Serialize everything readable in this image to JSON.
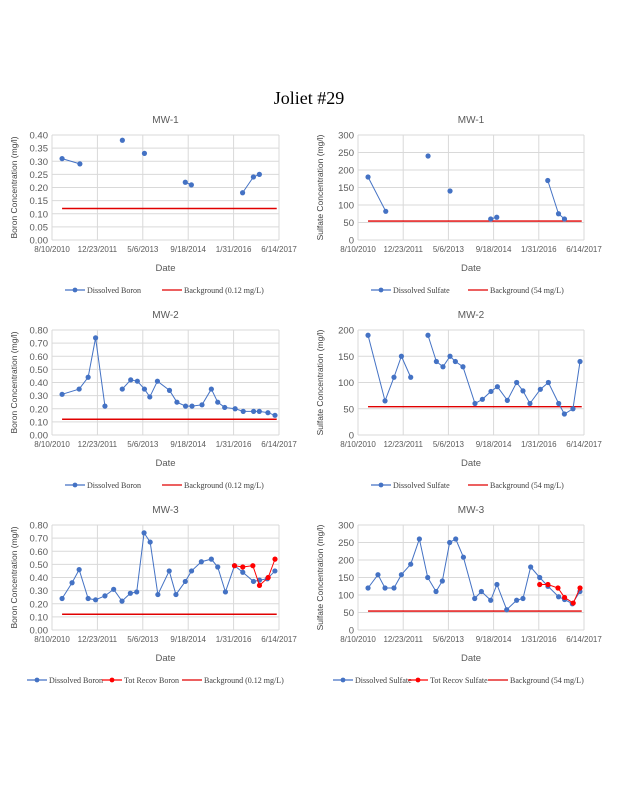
{
  "page": {
    "title": "Joliet #29"
  },
  "colors": {
    "dissolved": "#4472C4",
    "total": "#FF0000",
    "background": "#E00000",
    "grid": "#D9D9D9",
    "text": "#595959"
  },
  "chart_data": [
    {
      "id": "mw1-boron",
      "type": "line",
      "title": "MW-1",
      "xlabel": "Date",
      "ylabel": "Boron  Concentration  (mg/l)",
      "x_ticks": [
        "8/10/2010",
        "12/23/2011",
        "5/6/2013",
        "9/18/2014",
        "1/31/2016",
        "6/14/2017"
      ],
      "xlim": [
        "2010-08-10",
        "2017-06-14"
      ],
      "y_ticks": [
        "0.00",
        "0.05",
        "0.10",
        "0.15",
        "0.20",
        "0.25",
        "0.30",
        "0.35",
        "0.40"
      ],
      "ylim": [
        0,
        0.4
      ],
      "grid": true,
      "legend_position": "bottom",
      "series": [
        {
          "name": "Dissolved Boron",
          "color": "#4472C4",
          "marker": "circle",
          "segments": [
            [
              [
                "2010-11-29",
                0.31
              ],
              [
                "2011-06-13",
                0.29
              ]
            ],
            [
              [
                "2012-09-23",
                0.38
              ]
            ],
            [
              [
                "2013-05-24",
                0.33
              ]
            ],
            [
              [
                "2014-08-17",
                0.22
              ],
              [
                "2014-10-23",
                0.21
              ]
            ],
            [
              [
                "2016-05-09",
                0.18
              ],
              [
                "2016-09-05",
                0.24
              ],
              [
                "2016-11-10",
                0.25
              ]
            ]
          ]
        }
      ],
      "background": {
        "name": "Background  (0.12 mg/L)",
        "value": 0.12,
        "from": "2010-11-29",
        "to": "2017-05-20",
        "color": "#E00000"
      }
    },
    {
      "id": "mw1-sulfate",
      "type": "line",
      "title": "MW-1",
      "xlabel": "Date",
      "ylabel": "Sulfate   Concentration (mg/l)",
      "x_ticks": [
        "8/10/2010",
        "12/23/2011",
        "5/6/2013",
        "9/18/2014",
        "1/31/2016",
        "6/14/2017"
      ],
      "xlim": [
        "2010-08-10",
        "2017-06-14"
      ],
      "y_ticks": [
        "0",
        "50",
        "100",
        "150",
        "200",
        "250",
        "300"
      ],
      "ylim": [
        0,
        300
      ],
      "grid": true,
      "legend_position": "bottom",
      "series": [
        {
          "name": "Dissolved Sulfate",
          "color": "#4472C4",
          "marker": "circle",
          "segments": [
            [
              [
                "2010-11-29",
                180
              ],
              [
                "2011-06-13",
                82
              ]
            ],
            [
              [
                "2012-09-23",
                240
              ]
            ],
            [
              [
                "2013-05-24",
                140
              ]
            ],
            [
              [
                "2014-08-17",
                60
              ],
              [
                "2014-10-23",
                65
              ]
            ],
            [
              [
                "2016-05-09",
                170
              ],
              [
                "2016-09-05",
                75
              ],
              [
                "2016-11-10",
                60
              ]
            ]
          ]
        }
      ],
      "background": {
        "name": "Background  (54 mg/L)",
        "value": 54,
        "from": "2010-11-29",
        "to": "2017-05-20",
        "color": "#E00000"
      }
    },
    {
      "id": "mw2-boron",
      "type": "line",
      "title": "MW-2",
      "xlabel": "Date",
      "ylabel": "Boron  Concentration (mg/l)",
      "x_ticks": [
        "8/10/2010",
        "12/23/2011",
        "5/6/2013",
        "9/18/2014",
        "1/31/2016",
        "6/14/2017"
      ],
      "xlim": [
        "2010-08-10",
        "2017-06-14"
      ],
      "y_ticks": [
        "0.00",
        "0.10",
        "0.20",
        "0.30",
        "0.40",
        "0.50",
        "0.60",
        "0.70",
        "0.80"
      ],
      "ylim": [
        0,
        0.8
      ],
      "grid": true,
      "legend_position": "bottom",
      "series": [
        {
          "name": "Dissolved Boron",
          "color": "#4472C4",
          "marker": "circle",
          "segments": [
            [
              [
                "2010-11-29",
                0.31
              ],
              [
                "2011-06-05",
                0.35
              ],
              [
                "2011-09-12",
                0.44
              ],
              [
                "2011-12-03",
                0.74
              ],
              [
                "2012-03-15",
                0.22
              ]
            ],
            [
              [
                "2012-09-22",
                0.35
              ],
              [
                "2012-12-24",
                0.42
              ],
              [
                "2013-03-07",
                0.41
              ],
              [
                "2013-05-24",
                0.35
              ],
              [
                "2013-07-22",
                0.29
              ],
              [
                "2013-10-14",
                0.41
              ],
              [
                "2014-02-24",
                0.34
              ],
              [
                "2014-05-17",
                0.25
              ],
              [
                "2014-08-20",
                0.22
              ],
              [
                "2014-10-30",
                0.22
              ],
              [
                "2015-02-17",
                0.23
              ],
              [
                "2015-05-31",
                0.35
              ],
              [
                "2015-08-09",
                0.25
              ],
              [
                "2015-10-25",
                0.21
              ],
              [
                "2016-02-17",
                0.2
              ],
              [
                "2016-05-16",
                0.18
              ],
              [
                "2016-09-07",
                0.18
              ],
              [
                "2016-11-09",
                0.18
              ],
              [
                "2017-02-12",
                0.17
              ],
              [
                "2017-05-01",
                0.15
              ]
            ]
          ]
        }
      ],
      "background": {
        "name": "Background  (0.12 mg/L)",
        "value": 0.12,
        "from": "2010-11-29",
        "to": "2017-05-20",
        "color": "#E00000"
      }
    },
    {
      "id": "mw2-sulfate",
      "type": "line",
      "title": "MW-2",
      "xlabel": "Date",
      "ylabel": "Sulfate   Concentration    (mg/l)",
      "x_ticks": [
        "8/10/2010",
        "12/23/2011",
        "5/6/2013",
        "9/18/2014",
        "1/31/2016",
        "6/14/2017"
      ],
      "xlim": [
        "2010-08-10",
        "2017-06-14"
      ],
      "y_ticks": [
        "0",
        "50",
        "100",
        "150",
        "200"
      ],
      "ylim": [
        0,
        200
      ],
      "grid": true,
      "legend_position": "bottom",
      "series": [
        {
          "name": "Dissolved Sulfate",
          "color": "#4472C4",
          "marker": "circle",
          "segments": [
            [
              [
                "2010-11-29",
                190
              ],
              [
                "2011-06-05",
                65
              ],
              [
                "2011-09-12",
                110
              ],
              [
                "2011-12-03",
                150
              ],
              [
                "2012-03-15",
                110
              ]
            ],
            [
              [
                "2012-09-22",
                190
              ],
              [
                "2012-12-24",
                140
              ],
              [
                "2013-03-07",
                130
              ],
              [
                "2013-05-24",
                150
              ],
              [
                "2013-07-22",
                140
              ],
              [
                "2013-10-14",
                130
              ],
              [
                "2014-02-24",
                60
              ],
              [
                "2014-05-17",
                68
              ],
              [
                "2014-08-20",
                83
              ],
              [
                "2014-10-30",
                92
              ],
              [
                "2015-02-17",
                66
              ],
              [
                "2015-05-31",
                100
              ],
              [
                "2015-08-09",
                84
              ],
              [
                "2015-10-25",
                60
              ],
              [
                "2016-02-17",
                87
              ],
              [
                "2016-05-16",
                100
              ],
              [
                "2016-09-07",
                60
              ],
              [
                "2016-11-09",
                40
              ],
              [
                "2017-02-12",
                50
              ],
              [
                "2017-05-01",
                140
              ]
            ]
          ]
        }
      ],
      "background": {
        "name": "Background  (54 mg/L)",
        "value": 54,
        "from": "2010-11-29",
        "to": "2017-05-20",
        "color": "#E00000"
      }
    },
    {
      "id": "mw3-boron",
      "type": "line",
      "title": "MW-3",
      "xlabel": "Date",
      "ylabel": "Boron   Concentration (mg/l)",
      "x_ticks": [
        "8/10/2010",
        "12/23/2011",
        "5/6/2013",
        "9/18/2014",
        "1/31/2016",
        "6/14/2017"
      ],
      "xlim": [
        "2010-08-10",
        "2017-06-14"
      ],
      "y_ticks": [
        "0.00",
        "0.10",
        "0.20",
        "0.30",
        "0.40",
        "0.50",
        "0.60",
        "0.70",
        "0.80"
      ],
      "ylim": [
        0,
        0.8
      ],
      "grid": true,
      "legend_position": "bottom",
      "series": [
        {
          "name": "Dissolved Boron",
          "color": "#4472C4",
          "marker": "circle",
          "segments": [
            [
              [
                "2010-11-29",
                0.24
              ],
              [
                "2011-03-19",
                0.36
              ],
              [
                "2011-06-05",
                0.46
              ],
              [
                "2011-09-12",
                0.24
              ],
              [
                "2011-12-03",
                0.23
              ],
              [
                "2012-03-15",
                0.26
              ],
              [
                "2012-06-19",
                0.31
              ],
              [
                "2012-09-19",
                0.22
              ],
              [
                "2012-12-20",
                0.28
              ],
              [
                "2013-02-28",
                0.29
              ],
              [
                "2013-05-20",
                0.74
              ],
              [
                "2013-07-26",
                0.67
              ],
              [
                "2013-10-19",
                0.27
              ],
              [
                "2014-02-21",
                0.45
              ],
              [
                "2014-05-06",
                0.27
              ],
              [
                "2014-08-17",
                0.37
              ],
              [
                "2014-10-25",
                0.45
              ],
              [
                "2015-02-10",
                0.52
              ],
              [
                "2015-05-31",
                0.54
              ],
              [
                "2015-08-09",
                0.48
              ],
              [
                "2015-11-02",
                0.29
              ],
              [
                "2016-02-10",
                0.49
              ],
              [
                "2016-05-11",
                0.44
              ],
              [
                "2016-09-06",
                0.37
              ],
              [
                "2016-11-11",
                0.38
              ],
              [
                "2017-02-05",
                0.39
              ],
              [
                "2017-04-30",
                0.45
              ]
            ]
          ]
        },
        {
          "name": "Tot Recov Boron",
          "color": "#FF0000",
          "marker": "circle",
          "segments": [
            [
              [
                "2016-02-10",
                0.49
              ],
              [
                "2016-05-11",
                0.48
              ],
              [
                "2016-08-30",
                0.49
              ],
              [
                "2016-11-11",
                0.34
              ],
              [
                "2017-02-15",
                0.4
              ],
              [
                "2017-05-01",
                0.54
              ]
            ]
          ]
        }
      ],
      "background": {
        "name": "Background  (0.12 mg/L)",
        "value": 0.12,
        "from": "2010-11-29",
        "to": "2017-05-20",
        "color": "#E00000"
      }
    },
    {
      "id": "mw3-sulfate",
      "type": "line",
      "title": "MW-3",
      "xlabel": "Date",
      "ylabel": "Sulfate   Concentration    (mg/l)",
      "x_ticks": [
        "8/10/2010",
        "12/23/2011",
        "5/6/2013",
        "9/18/2014",
        "1/31/2016",
        "6/14/2017"
      ],
      "xlim": [
        "2010-08-10",
        "2017-06-14"
      ],
      "y_ticks": [
        "0",
        "50",
        "100",
        "150",
        "200",
        "250",
        "300"
      ],
      "ylim": [
        0,
        300
      ],
      "grid": true,
      "legend_position": "bottom",
      "series": [
        {
          "name": "Dissolved Sulfate",
          "color": "#4472C4",
          "marker": "circle",
          "segments": [
            [
              [
                "2010-11-29",
                120
              ],
              [
                "2011-03-19",
                158
              ],
              [
                "2011-06-05",
                120
              ],
              [
                "2011-09-12",
                120
              ],
              [
                "2011-12-03",
                158
              ],
              [
                "2012-03-15",
                188
              ],
              [
                "2012-06-19",
                260
              ],
              [
                "2012-09-19",
                150
              ],
              [
                "2012-12-20",
                110
              ],
              [
                "2013-02-28",
                140
              ],
              [
                "2013-05-20",
                250
              ],
              [
                "2013-07-26",
                260
              ],
              [
                "2013-10-19",
                208
              ],
              [
                "2014-02-21",
                90
              ],
              [
                "2014-05-06",
                110
              ],
              [
                "2014-08-17",
                85
              ],
              [
                "2014-10-25",
                130
              ],
              [
                "2015-02-10",
                58
              ],
              [
                "2015-05-31",
                85
              ],
              [
                "2015-08-09",
                90
              ],
              [
                "2015-11-02",
                180
              ],
              [
                "2016-02-10",
                150
              ],
              [
                "2016-05-11",
                125
              ],
              [
                "2016-09-06",
                95
              ],
              [
                "2016-11-11",
                87
              ],
              [
                "2017-02-05",
                75
              ],
              [
                "2017-04-30",
                110
              ]
            ]
          ]
        },
        {
          "name": "Tot Recov Sulfate",
          "color": "#FF0000",
          "marker": "circle",
          "segments": [
            [
              [
                "2016-02-10",
                130
              ],
              [
                "2016-05-11",
                130
              ],
              [
                "2016-08-30",
                120
              ],
              [
                "2016-11-11",
                93
              ],
              [
                "2017-02-15",
                77
              ],
              [
                "2017-05-01",
                120
              ]
            ]
          ]
        }
      ],
      "background": {
        "name": "Background  (54 mg/L)",
        "value": 54,
        "from": "2010-11-29",
        "to": "2017-05-20",
        "color": "#E00000"
      }
    }
  ]
}
